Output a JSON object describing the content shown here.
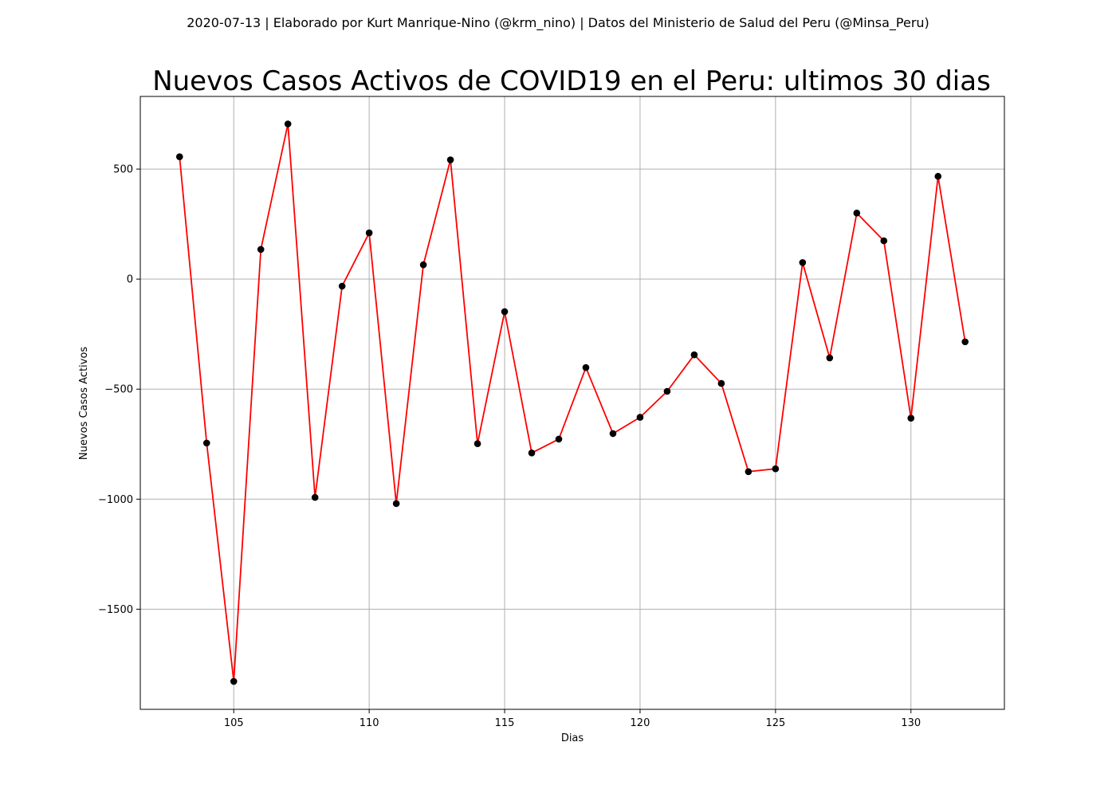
{
  "chart_data": {
    "type": "line",
    "suptitle": "2020-07-13 | Elaborado por Kurt Manrique-Nino (@krm_nino) | Datos del Ministerio de Salud del Peru (@Minsa_Peru)",
    "title": "Nuevos Casos Activos de COVID19 en el Peru: ultimos 30 dias",
    "xlabel": "Dias",
    "ylabel": "Nuevos Casos Activos",
    "xlim": [
      101.55,
      133.45
    ],
    "ylim": [
      -1955,
      830
    ],
    "xticks": [
      105,
      110,
      115,
      120,
      125,
      130
    ],
    "yticks": [
      500,
      0,
      -500,
      -1000,
      -1500
    ],
    "ytick_labels": [
      "500",
      "0",
      "−500",
      "−1000",
      "−1500"
    ],
    "grid": true,
    "line_color": "#ff0000",
    "marker_color": "#000000",
    "series": [
      {
        "x": [
          103,
          104,
          105,
          106,
          107,
          108,
          109,
          110,
          111,
          112,
          113,
          114,
          115,
          116,
          117,
          118,
          119,
          120,
          121,
          122,
          123,
          124,
          125,
          126,
          127,
          128,
          129,
          130,
          131,
          132
        ],
        "values": [
          556,
          -745,
          -1828,
          135,
          705,
          -992,
          -32,
          210,
          -1020,
          65,
          542,
          -748,
          -148,
          -790,
          -727,
          -402,
          -702,
          -628,
          -510,
          -344,
          -474,
          -875,
          -862,
          75,
          -358,
          300,
          174,
          -632,
          467,
          -285
        ]
      }
    ]
  }
}
